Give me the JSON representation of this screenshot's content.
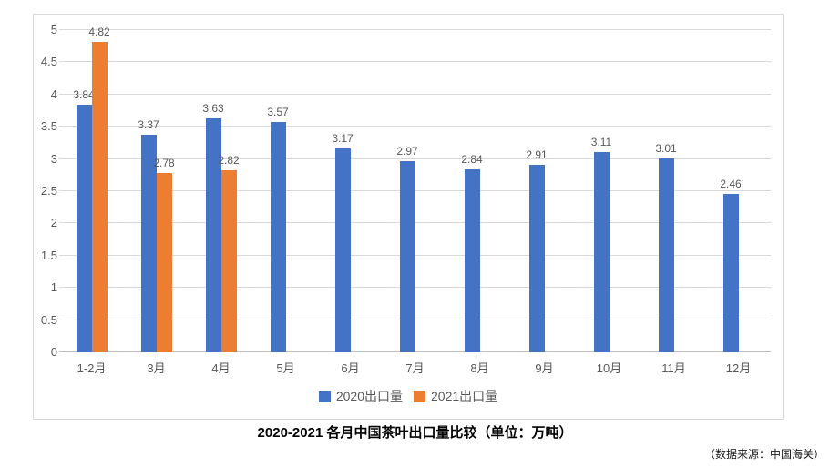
{
  "chart_data": {
    "type": "bar",
    "title": "2020-2021 各月中国茶叶出口量比较（单位：万吨）",
    "source_note": "（数据来源：中国海关）",
    "categories": [
      "1-2月",
      "3月",
      "4月",
      "5月",
      "6月",
      "7月",
      "8月",
      "9月",
      "10月",
      "11月",
      "12月"
    ],
    "series": [
      {
        "name": "2020出口量",
        "color": "#4472C4",
        "values": [
          3.84,
          3.37,
          3.63,
          3.57,
          3.17,
          2.97,
          2.84,
          2.91,
          3.11,
          3.01,
          2.46
        ]
      },
      {
        "name": "2021出口量",
        "color": "#ED7D31",
        "values": [
          4.82,
          2.78,
          2.82,
          null,
          null,
          null,
          null,
          null,
          null,
          null,
          null
        ]
      }
    ],
    "ylim": [
      0,
      5
    ],
    "yticks": [
      0,
      0.5,
      1,
      1.5,
      2,
      2.5,
      3,
      3.5,
      4,
      4.5,
      5
    ],
    "grid": true,
    "legend_position": "bottom",
    "colors": {
      "grid": "#d9d9d9",
      "axis_text": "#595959",
      "frame": "#d9d9d9"
    }
  }
}
